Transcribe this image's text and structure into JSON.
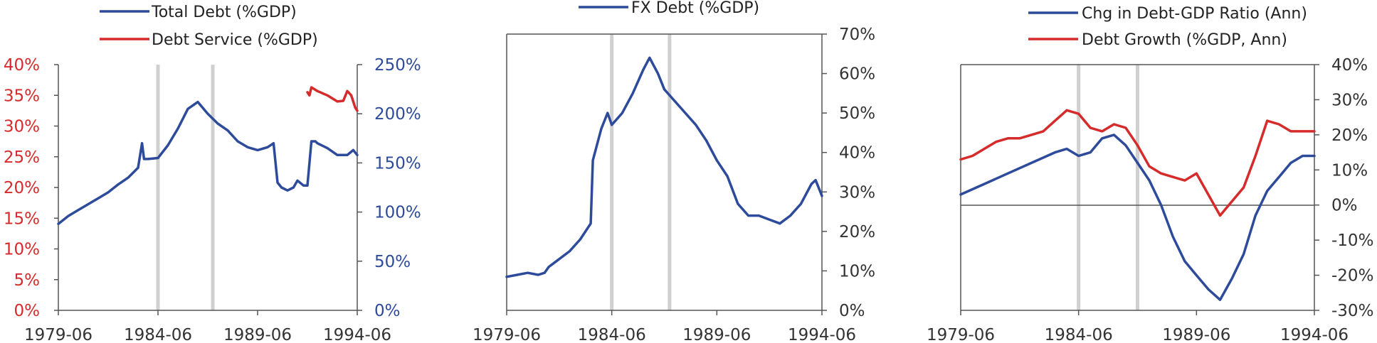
{
  "colors": {
    "blue": "#2d4b9a",
    "red": "#d52b2b",
    "band": "#d0d0d0",
    "axis": "#555555"
  },
  "chart_data": [
    {
      "type": "line",
      "title": "",
      "legend": [
        "Total Debt (%GDP)",
        "Debt Service (%GDP)"
      ],
      "legend_position": "top",
      "x_ticks": [
        "1979-06",
        "1984-06",
        "1989-06",
        "1994-06"
      ],
      "xlim": [
        1979.5,
        1994.5
      ],
      "left_axis": {
        "ticks": [
          "40%",
          "35%",
          "30%",
          "25%",
          "20%",
          "15%",
          "10%",
          "5%",
          "0%"
        ],
        "ylim": [
          0,
          40
        ]
      },
      "right_axis": {
        "ticks": [
          "250%",
          "200%",
          "150%",
          "100%",
          "50%",
          "0%"
        ],
        "ylim": [
          0,
          250
        ]
      },
      "bands": [
        1984.5,
        1987.25
      ],
      "series": [
        {
          "name": "Total Debt (%GDP)",
          "color": "#2d4b9a",
          "axis": "right",
          "x": [
            1979.5,
            1980.0,
            1980.5,
            1981.0,
            1981.5,
            1982.0,
            1982.5,
            1983.0,
            1983.5,
            1983.7,
            1983.8,
            1984.0,
            1984.5,
            1985.0,
            1985.5,
            1986.0,
            1986.5,
            1987.0,
            1987.5,
            1988.0,
            1988.5,
            1989.0,
            1989.5,
            1990.0,
            1990.3,
            1990.5,
            1990.7,
            1991.0,
            1991.3,
            1991.5,
            1991.8,
            1992.0,
            1992.2,
            1992.4,
            1992.5,
            1993.0,
            1993.5,
            1994.0,
            1994.3,
            1994.5
          ],
          "values": [
            88,
            96,
            102,
            108,
            114,
            120,
            128,
            135,
            145,
            170,
            154,
            154,
            155,
            168,
            185,
            205,
            212,
            200,
            190,
            183,
            172,
            166,
            163,
            166,
            170,
            130,
            125,
            122,
            125,
            132,
            127,
            127,
            172,
            172,
            170,
            165,
            158,
            158,
            163,
            158
          ]
        },
        {
          "name": "Debt Service (%GDP)",
          "color": "#d52b2b",
          "axis": "left",
          "x": [
            1992.0,
            1992.1,
            1992.2,
            1992.5,
            1993.0,
            1993.5,
            1993.8,
            1994.0,
            1994.2,
            1994.4,
            1994.5
          ],
          "values": [
            35.5,
            35.0,
            36.3,
            35.7,
            35.0,
            34.0,
            34.1,
            35.7,
            35.0,
            33.0,
            32.5
          ]
        }
      ]
    },
    {
      "type": "line",
      "title": "",
      "legend": [
        "FX Debt (%GDP)"
      ],
      "legend_position": "top",
      "x_ticks": [
        "1979-06",
        "1984-06",
        "1989-06",
        "1994-06"
      ],
      "xlim": [
        1979.5,
        1994.5
      ],
      "right_axis": {
        "ticks": [
          "70%",
          "60%",
          "50%",
          "40%",
          "30%",
          "20%",
          "10%",
          "0%"
        ],
        "ylim": [
          0,
          70
        ]
      },
      "bands": [
        1984.5,
        1987.25
      ],
      "series": [
        {
          "name": "FX Debt (%GDP)",
          "color": "#2d4b9a",
          "axis": "right",
          "x": [
            1979.5,
            1980.0,
            1980.5,
            1981.0,
            1981.3,
            1981.5,
            1982.0,
            1982.5,
            1983.0,
            1983.5,
            1983.6,
            1984.0,
            1984.3,
            1984.5,
            1985.0,
            1985.5,
            1986.0,
            1986.3,
            1986.5,
            1986.7,
            1987.0,
            1987.5,
            1988.0,
            1988.5,
            1989.0,
            1989.5,
            1990.0,
            1990.5,
            1991.0,
            1991.5,
            1992.0,
            1992.5,
            1993.0,
            1993.5,
            1994.0,
            1994.2,
            1994.5
          ],
          "values": [
            8.5,
            9,
            9.5,
            9,
            9.5,
            11,
            13,
            15,
            18,
            22,
            38,
            46,
            50,
            47,
            50,
            55,
            61,
            64,
            62,
            60,
            56,
            53,
            50,
            47,
            43,
            38,
            34,
            27,
            24,
            24,
            23,
            22,
            24,
            27,
            32,
            33,
            29
          ]
        }
      ]
    },
    {
      "type": "line",
      "title": "",
      "legend": [
        "Chg in Debt-GDP Ratio (Ann)",
        "Debt Growth (%GDP, Ann)"
      ],
      "legend_position": "top",
      "x_ticks": [
        "1979-06",
        "1984-06",
        "1989-06",
        "1994-06"
      ],
      "xlim": [
        1979.5,
        1994.5
      ],
      "right_axis": {
        "ticks": [
          "40%",
          "30%",
          "20%",
          "10%",
          "0%",
          "-10%",
          "-20%",
          "-30%"
        ],
        "ylim": [
          -30,
          40
        ]
      },
      "bands": [
        1984.5,
        1987.0
      ],
      "series": [
        {
          "name": "Chg in Debt-GDP Ratio (Ann)",
          "color": "#2d4b9a",
          "axis": "right",
          "x": [
            1979.5,
            1980.5,
            1981.5,
            1982.5,
            1983.5,
            1984.0,
            1984.5,
            1985.0,
            1985.5,
            1986.0,
            1986.5,
            1987.0,
            1987.5,
            1988.0,
            1988.5,
            1989.0,
            1989.5,
            1990.0,
            1990.5,
            1991.0,
            1991.5,
            1992.0,
            1992.5,
            1993.0,
            1993.5,
            1994.0,
            1994.5
          ],
          "values": [
            3,
            6,
            9,
            12,
            15,
            16,
            14,
            15,
            19,
            20,
            17,
            12,
            7,
            0,
            -9,
            -16,
            -20,
            -24,
            -27,
            -21,
            -14,
            -3,
            4,
            8,
            12,
            14,
            14
          ]
        },
        {
          "name": "Debt Growth (%GDP, Ann)",
          "color": "#d52b2b",
          "axis": "right",
          "x": [
            1979.5,
            1980.0,
            1980.5,
            1981.0,
            1981.5,
            1982.0,
            1982.5,
            1983.0,
            1983.5,
            1984.0,
            1984.5,
            1985.0,
            1985.5,
            1986.0,
            1986.5,
            1987.0,
            1987.5,
            1988.0,
            1988.5,
            1989.0,
            1989.5,
            1990.0,
            1990.5,
            1991.0,
            1991.5,
            1992.0,
            1992.5,
            1993.0,
            1993.5,
            1994.0,
            1994.5
          ],
          "values": [
            13,
            14,
            16,
            18,
            19,
            19,
            20,
            21,
            24,
            27,
            26,
            22,
            21,
            23,
            22,
            17,
            11,
            9,
            8,
            7,
            9,
            3,
            -3,
            1,
            5,
            14,
            24,
            23,
            21,
            21,
            21
          ]
        }
      ]
    }
  ]
}
